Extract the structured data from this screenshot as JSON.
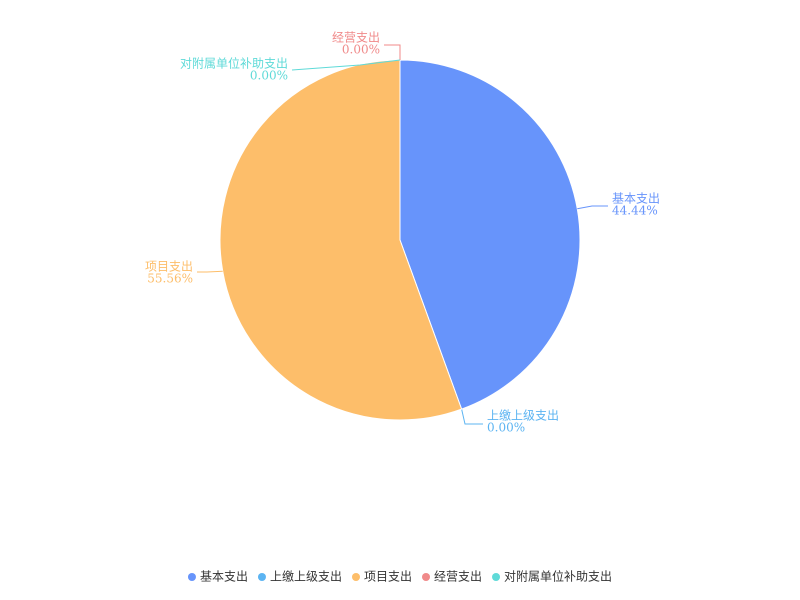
{
  "chart_data": {
    "type": "pie",
    "categories": [
      "基本支出",
      "上缴上级支出",
      "项目支出",
      "经营支出",
      "对附属单位补助支出"
    ],
    "values": [
      44.44,
      0,
      55.56,
      0,
      0
    ],
    "value_labels": [
      "44.44%",
      "0.00%",
      "55.56%",
      "0.00%",
      "0.00%"
    ],
    "colors": [
      "#6794fb",
      "#5cb4f2",
      "#fdbe6a",
      "#f08a8a",
      "#5fdad8"
    ],
    "legend": "bottom"
  }
}
